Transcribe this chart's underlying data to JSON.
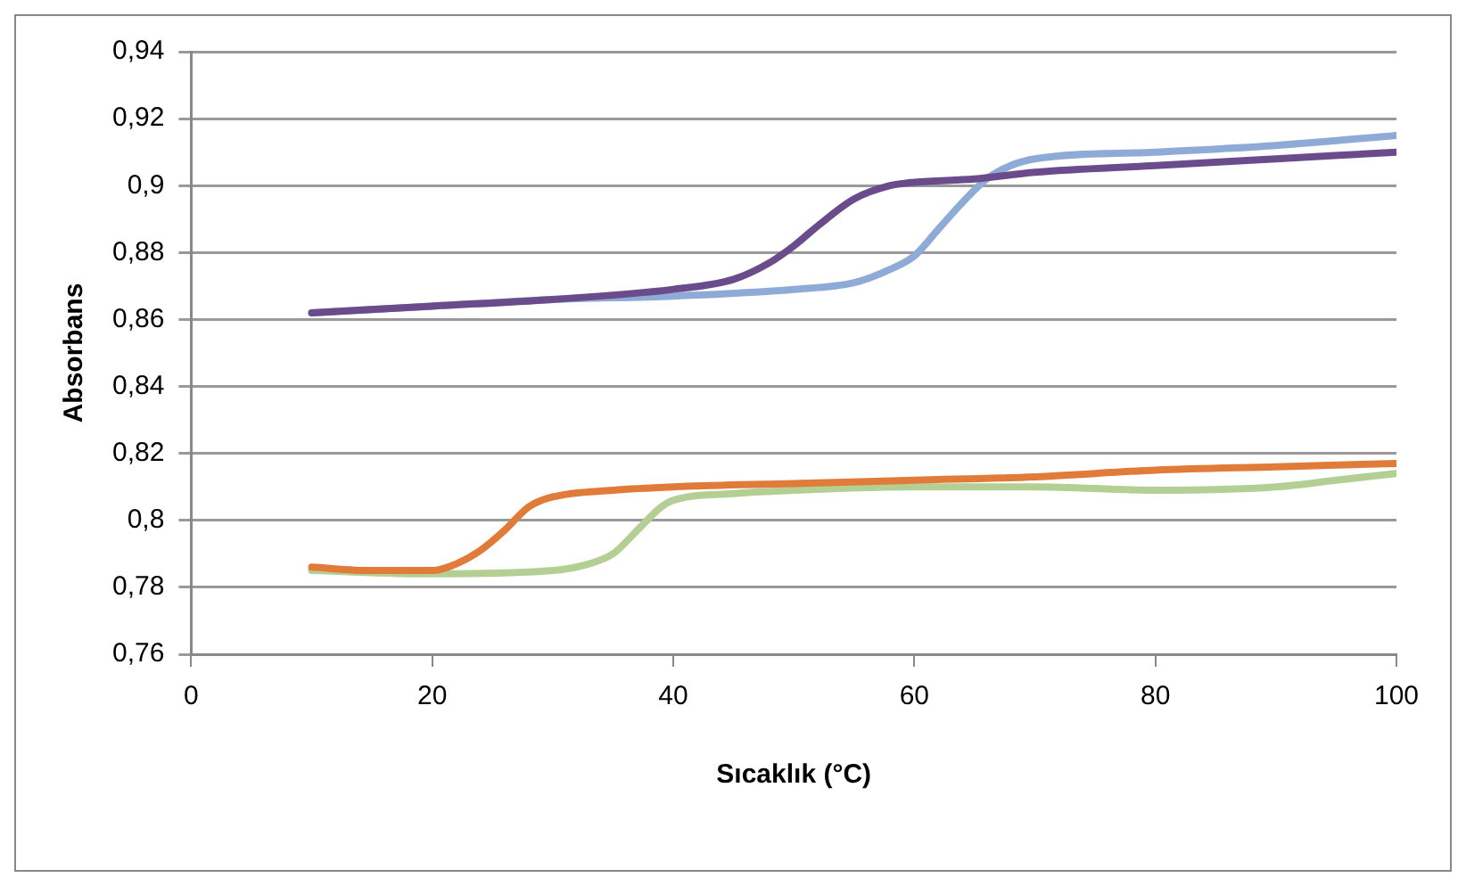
{
  "chart_data": {
    "type": "line",
    "xlabel": "Sıcaklık (°C)",
    "ylabel": "Absorbans",
    "xlim": [
      0,
      100
    ],
    "xticks": [
      0,
      20,
      40,
      60,
      80,
      100
    ],
    "ylim": [
      0.76,
      0.94
    ],
    "yticks": [
      {
        "value": 0.76,
        "label": "0,76"
      },
      {
        "value": 0.78,
        "label": "0,78"
      },
      {
        "value": 0.8,
        "label": "0,8"
      },
      {
        "value": 0.82,
        "label": "0,82"
      },
      {
        "value": 0.84,
        "label": "0,84"
      },
      {
        "value": 0.86,
        "label": "0,86"
      },
      {
        "value": 0.88,
        "label": "0,88"
      },
      {
        "value": 0.9,
        "label": "0,9"
      },
      {
        "value": 0.92,
        "label": "0,92"
      },
      {
        "value": 0.94,
        "label": "0,94"
      }
    ],
    "grid": "y",
    "legend": false,
    "marker": "none",
    "line_style": "solid",
    "series": [
      {
        "color": "#6a4c8c",
        "x": [
          10,
          20,
          30,
          40,
          45,
          48,
          50,
          52,
          55,
          58,
          60,
          65,
          70,
          80,
          90,
          100
        ],
        "values": [
          0.862,
          0.864,
          0.866,
          0.869,
          0.872,
          0.877,
          0.882,
          0.888,
          0.896,
          0.9,
          0.901,
          0.902,
          0.904,
          0.906,
          0.908,
          0.91
        ]
      },
      {
        "color": "#8eaad6",
        "x": [
          10,
          20,
          30,
          40,
          50,
          55,
          58,
          60,
          62,
          64,
          66,
          68,
          70,
          80,
          90,
          100
        ],
        "values": [
          0.862,
          0.864,
          0.866,
          0.867,
          0.869,
          0.871,
          0.875,
          0.879,
          0.887,
          0.895,
          0.902,
          0.906,
          0.908,
          0.91,
          0.912,
          0.915
        ]
      },
      {
        "color": "#e07b39",
        "x": [
          10,
          15,
          20,
          22,
          24,
          26,
          28,
          30,
          35,
          40,
          50,
          60,
          70,
          80,
          90,
          100
        ],
        "values": [
          0.786,
          0.785,
          0.785,
          0.787,
          0.791,
          0.797,
          0.804,
          0.807,
          0.809,
          0.81,
          0.811,
          0.812,
          0.813,
          0.815,
          0.816,
          0.817
        ]
      },
      {
        "color": "#b4cf94",
        "x": [
          10,
          20,
          30,
          33,
          35,
          37,
          39,
          40,
          45,
          50,
          60,
          70,
          80,
          90,
          95,
          100
        ],
        "values": [
          0.785,
          0.784,
          0.785,
          0.787,
          0.79,
          0.797,
          0.804,
          0.806,
          0.808,
          0.809,
          0.81,
          0.81,
          0.809,
          0.81,
          0.812,
          0.814
        ]
      }
    ]
  }
}
